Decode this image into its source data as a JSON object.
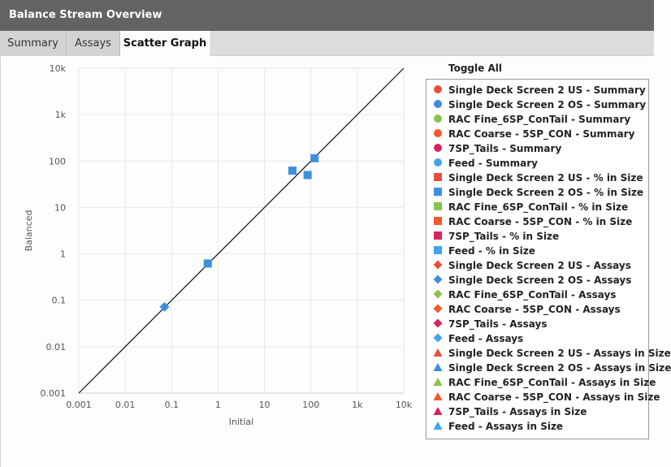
{
  "window": {
    "title": "Balance Stream Overview"
  },
  "tabs": [
    {
      "label": "Summary",
      "active": false
    },
    {
      "label": "Assays",
      "active": false
    },
    {
      "label": "Scatter Graph",
      "active": true
    }
  ],
  "legend": {
    "toggle_all_label": "Toggle All",
    "items": [
      {
        "label": "Single Deck Screen 2 US - Summary",
        "symbol": "circle",
        "color": "#e3503f"
      },
      {
        "label": "Single Deck Screen 2 OS - Summary",
        "symbol": "circle",
        "color": "#3e8ee0"
      },
      {
        "label": "RAC Fine_6SP_ConTail - Summary",
        "symbol": "circle",
        "color": "#86c34a"
      },
      {
        "label": "RAC Coarse - 5SP_CON - Summary",
        "symbol": "circle",
        "color": "#ef5a2a"
      },
      {
        "label": "7SP_Tails - Summary",
        "symbol": "circle",
        "color": "#d8245e"
      },
      {
        "label": "Feed - Summary",
        "symbol": "circle",
        "color": "#40a4ea"
      },
      {
        "label": "Single Deck Screen 2 US - % in Size",
        "symbol": "square",
        "color": "#e3503f"
      },
      {
        "label": "Single Deck Screen 2 OS - % in Size",
        "symbol": "square",
        "color": "#3e8ee0"
      },
      {
        "label": "RAC Fine_6SP_ConTail - % in Size",
        "symbol": "square",
        "color": "#86c34a"
      },
      {
        "label": "RAC Coarse - 5SP_CON - % in Size",
        "symbol": "square",
        "color": "#ef5a2a"
      },
      {
        "label": "7SP_Tails - % in Size",
        "symbol": "square",
        "color": "#d8245e"
      },
      {
        "label": "Feed - % in Size",
        "symbol": "square",
        "color": "#40a4ea"
      },
      {
        "label": "Single Deck Screen 2 US - Assays",
        "symbol": "diamond",
        "color": "#e3503f"
      },
      {
        "label": "Single Deck Screen 2 OS - Assays",
        "symbol": "diamond",
        "color": "#3e8ee0"
      },
      {
        "label": "RAC Fine_6SP_ConTail - Assays",
        "symbol": "diamond",
        "color": "#86c34a"
      },
      {
        "label": "RAC Coarse - 5SP_CON - Assays",
        "symbol": "diamond",
        "color": "#ef5a2a"
      },
      {
        "label": "7SP_Tails - Assays",
        "symbol": "diamond",
        "color": "#d8245e"
      },
      {
        "label": "Feed - Assays",
        "symbol": "diamond",
        "color": "#40a4ea"
      },
      {
        "label": "Single Deck Screen 2 US - Assays in Size",
        "symbol": "triangle",
        "color": "#e3503f"
      },
      {
        "label": "Single Deck Screen 2 OS - Assays in Size",
        "symbol": "triangle",
        "color": "#3e8ee0"
      },
      {
        "label": "RAC Fine_6SP_ConTail - Assays in Size",
        "symbol": "triangle",
        "color": "#86c34a"
      },
      {
        "label": "RAC Coarse - 5SP_CON - Assays in Size",
        "symbol": "triangle",
        "color": "#ef5a2a"
      },
      {
        "label": "7SP_Tails - Assays in Size",
        "symbol": "triangle",
        "color": "#d8245e"
      },
      {
        "label": "Feed - Assays in Size",
        "symbol": "triangle",
        "color": "#40a4ea"
      }
    ]
  },
  "chart_data": {
    "type": "scatter",
    "xlabel": "Initial",
    "ylabel": "Balanced",
    "xscale": "log",
    "yscale": "log",
    "xlim": [
      0.001,
      10000
    ],
    "ylim": [
      0.001,
      10000
    ],
    "x_ticks": [
      "0.001",
      "0.01",
      "0.1",
      "1",
      "10",
      "100",
      "1k",
      "10k"
    ],
    "y_ticks": [
      "0.001",
      "0.01",
      "0.1",
      "1",
      "10",
      "100",
      "1k",
      "10k"
    ],
    "grid": true,
    "legend_position": "right",
    "reference_line": "y = x",
    "points": [
      {
        "x": 40,
        "y": 62,
        "symbol": "square",
        "color": "#3e8ee0"
      },
      {
        "x": 85,
        "y": 50,
        "symbol": "square",
        "color": "#3e8ee0"
      },
      {
        "x": 120,
        "y": 115,
        "symbol": "square",
        "color": "#3e8ee0"
      },
      {
        "x": 0.6,
        "y": 0.62,
        "symbol": "square",
        "color": "#3e8ee0"
      },
      {
        "x": 0.07,
        "y": 0.072,
        "symbol": "diamond",
        "color": "#3e8ee0"
      }
    ]
  }
}
